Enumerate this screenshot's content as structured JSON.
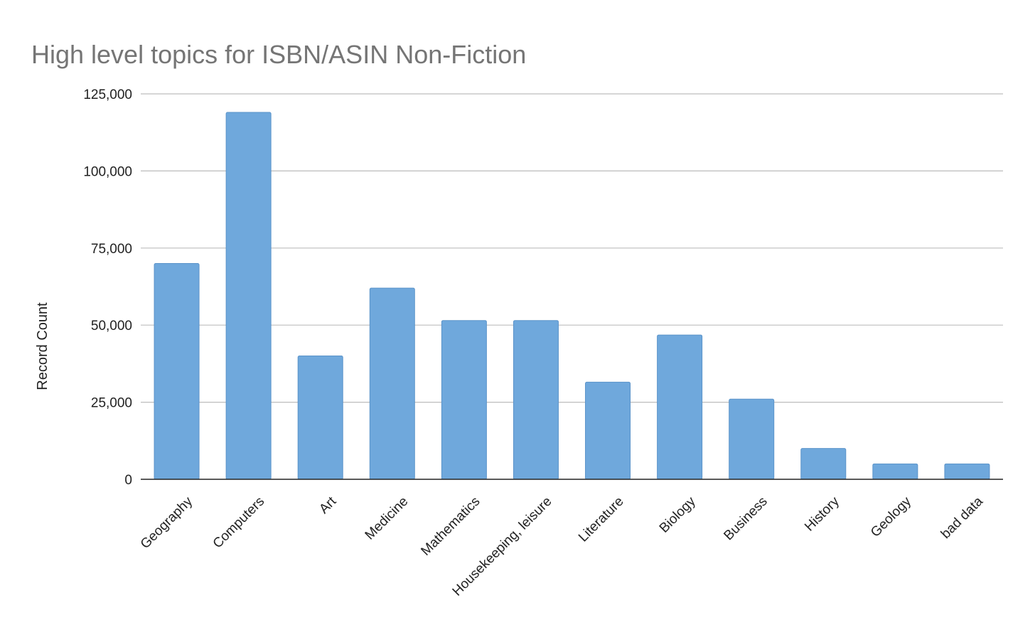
{
  "chart_data": {
    "type": "bar",
    "title": "High level topics for ISBN/ASIN Non-Fiction",
    "xlabel": "",
    "ylabel": "Record Count",
    "categories": [
      "Geography",
      "Computers",
      "Art",
      "Medicine",
      "Mathematics",
      "Housekeeping, leisure",
      "Literature",
      "Biology",
      "Business",
      "History",
      "Geology",
      "bad data"
    ],
    "values": [
      70000,
      119000,
      40000,
      62000,
      51500,
      51500,
      31500,
      46800,
      26000,
      10000,
      5000,
      5000
    ],
    "ylim": [
      0,
      125000
    ],
    "yticks": [
      0,
      25000,
      50000,
      75000,
      100000,
      125000
    ],
    "ytick_labels": [
      "0",
      "25,000",
      "50,000",
      "75,000",
      "100,000",
      "125,000"
    ],
    "grid": true,
    "legend": "none",
    "bar_color": "#6fa8dc",
    "bar_stroke": "#5b93c9",
    "grid_color": "#bdbdbd",
    "axis_color": "#222222"
  }
}
